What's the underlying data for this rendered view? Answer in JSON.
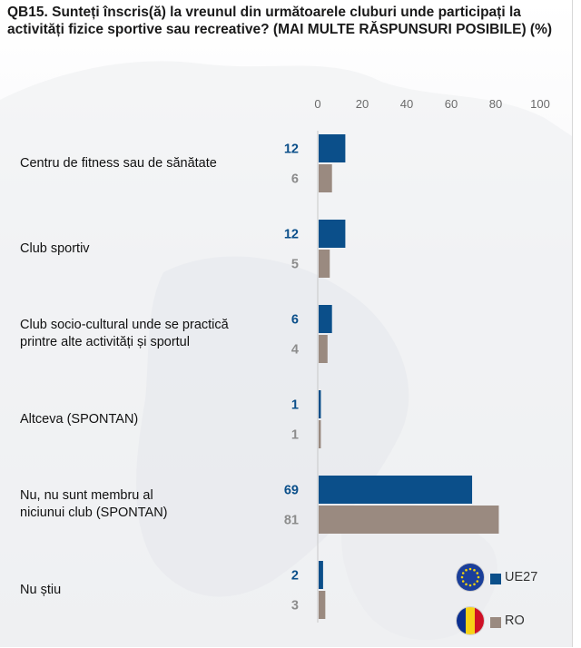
{
  "title": "QB15. Sunteți înscris(ă) la vreunul din următoarele cluburi unde participați la activități fizice sportive sau recreative? (MAI MULTE RĂSPUNSURI POSIBILE) (%)",
  "colors": {
    "ue27": "#0b4f8a",
    "ro": "#9a8a80",
    "ue27_text": "#0b4f8a",
    "ro_text": "#8c8c8c"
  },
  "chart_data": {
    "type": "bar",
    "orientation": "horizontal",
    "xlim": [
      0,
      100
    ],
    "ticks": [
      "0",
      "20",
      "40",
      "60",
      "80",
      "100"
    ],
    "tick_values": [
      0,
      20,
      40,
      60,
      80,
      100
    ],
    "grid": false,
    "legend_position": "bottom-right",
    "categories": [
      "Centru de fitness sau de sănătate",
      "Club sportiv",
      "Club socio-cultural unde se practică printre alte activități și sportul",
      "Altceva (SPONTAN)",
      "Nu, nu sunt membru al niciunui club (SPONTAN)",
      "Nu știu"
    ],
    "category_lines": [
      [
        "Centru de fitness sau de sănătate"
      ],
      [
        "Club sportiv"
      ],
      [
        "Club socio-cultural unde se practică",
        "printre alte activități și sportul"
      ],
      [
        "Altceva (SPONTAN)"
      ],
      [
        "Nu, nu sunt membru al",
        "niciunui club (SPONTAN)"
      ],
      [
        "Nu știu"
      ]
    ],
    "series": [
      {
        "name": "UE27",
        "values": [
          12,
          12,
          6,
          1,
          69,
          2
        ]
      },
      {
        "name": "RO",
        "values": [
          6,
          5,
          4,
          1,
          81,
          3
        ]
      }
    ]
  },
  "legend": [
    {
      "label": "UE27",
      "icon": "eu-flag-icon"
    },
    {
      "label": "RO",
      "icon": "romania-flag-icon"
    }
  ]
}
